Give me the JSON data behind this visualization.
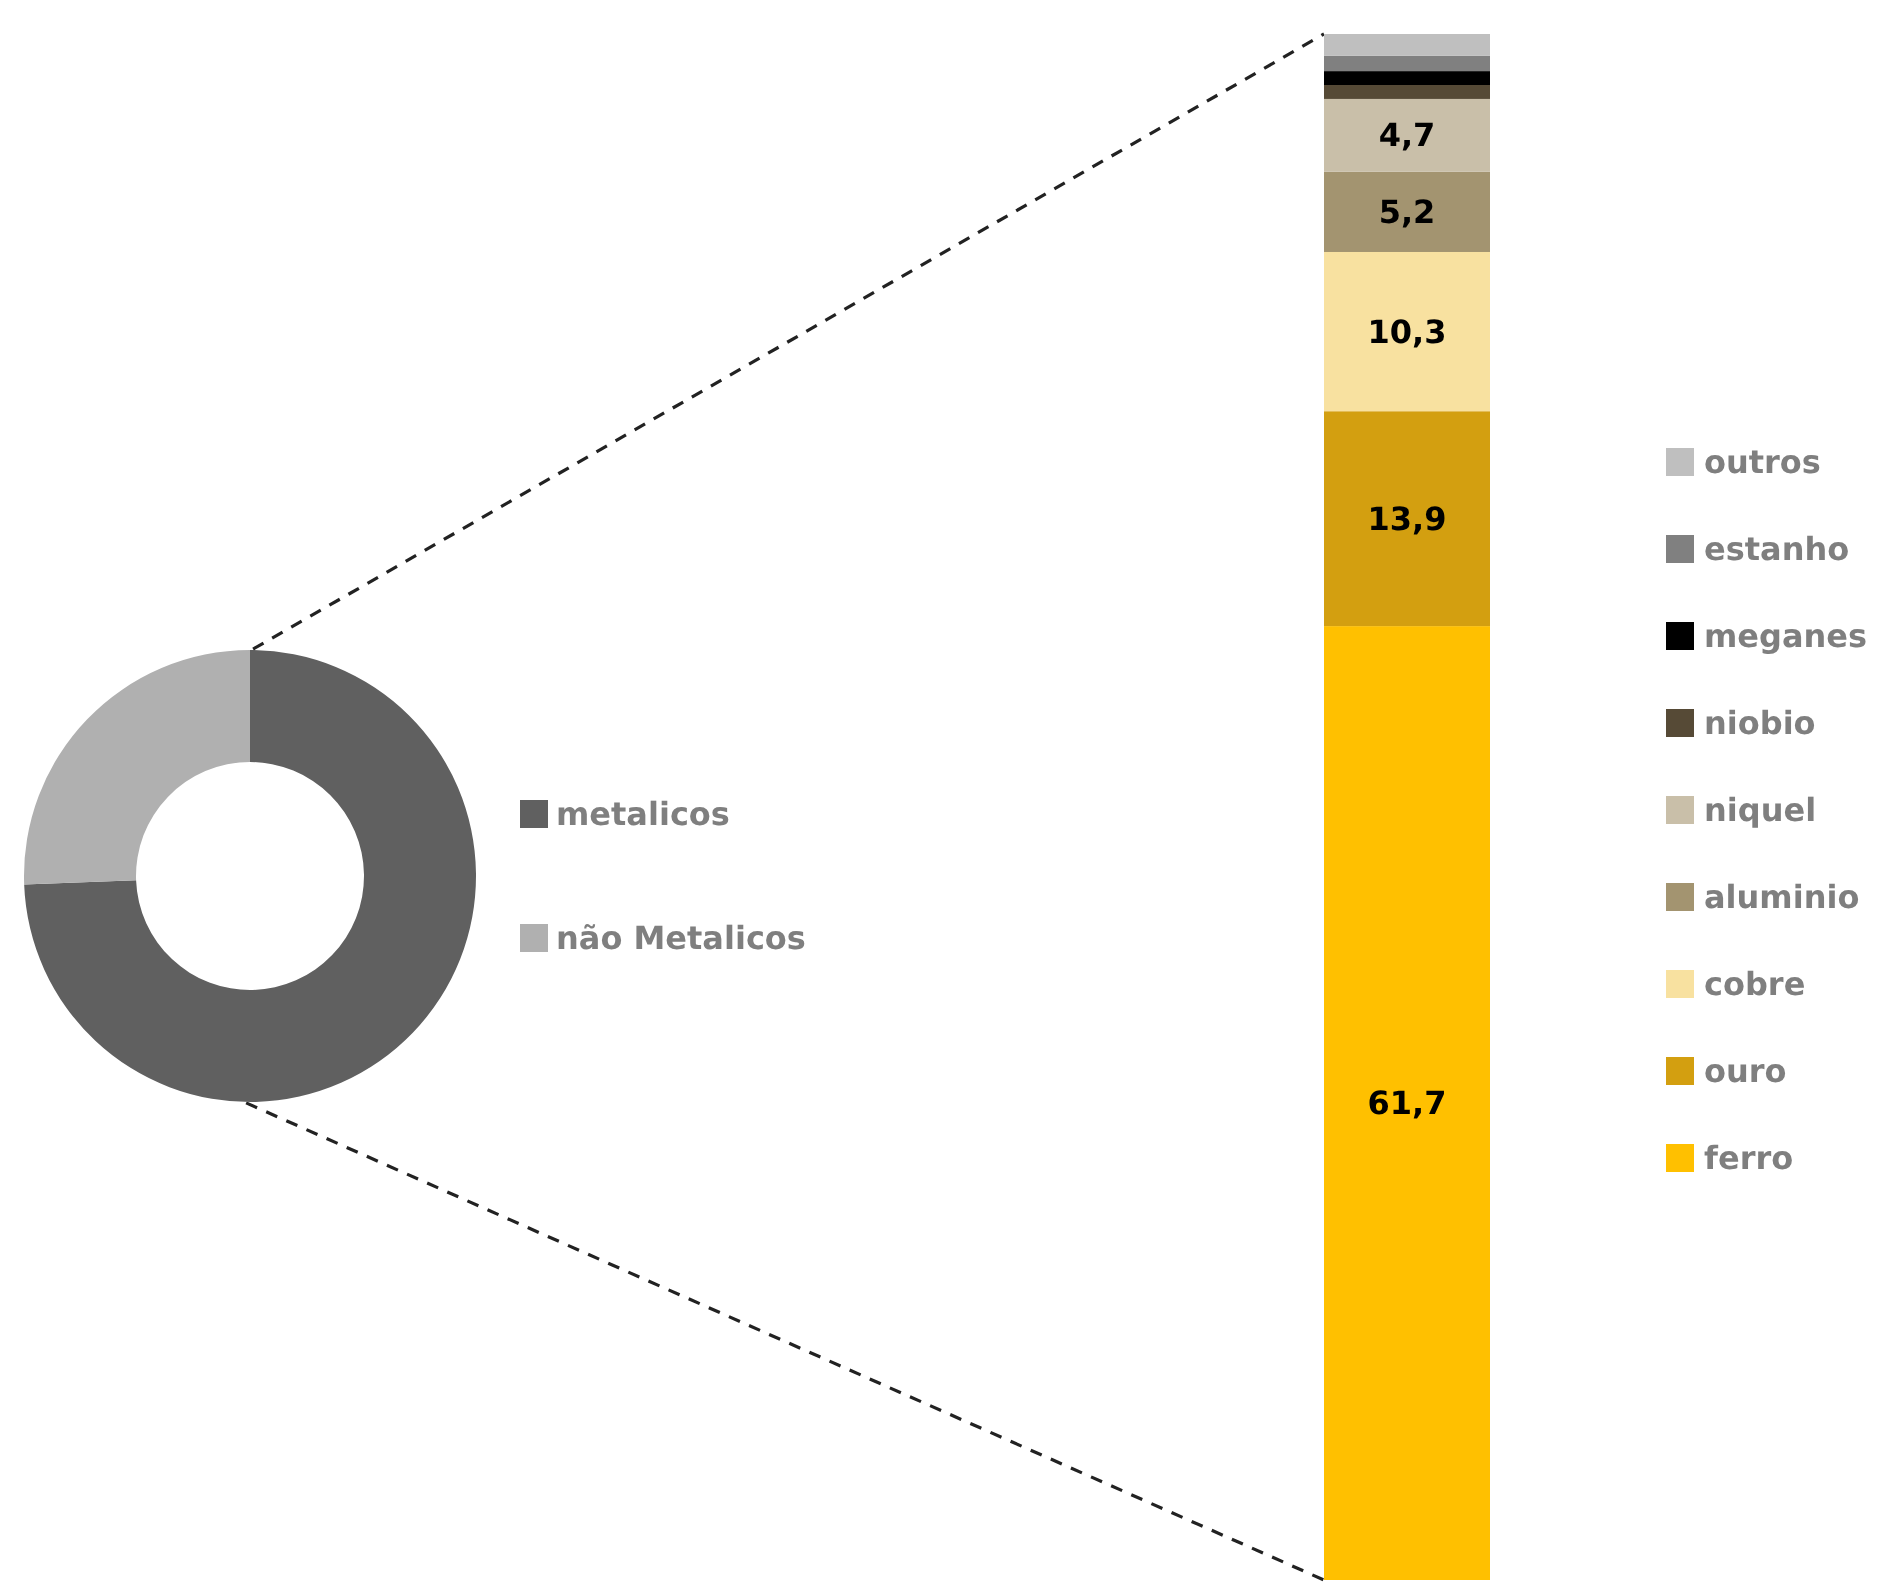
{
  "chart_data": [
    {
      "type": "donut",
      "categories": [
        "metalicos",
        "não Metalicos"
      ],
      "values": [
        74.4,
        25.6
      ],
      "colors": [
        "#606060",
        "#b0b0b0"
      ],
      "legend": "right"
    },
    {
      "type": "bar",
      "stacked": true,
      "categories": [
        null
      ],
      "ylim": [
        0,
        100
      ],
      "legend": "right",
      "series": [
        {
          "name": "ferro",
          "color": "#ffc000",
          "values": [
            61.7
          ],
          "value_labels": [
            "61,7"
          ]
        },
        {
          "name": "ouro",
          "color": "#d39f10",
          "values": [
            13.9
          ],
          "value_labels": [
            "13,9"
          ]
        },
        {
          "name": "cobre",
          "color": "#f8e1a0",
          "values": [
            10.3
          ],
          "value_labels": [
            "10,3"
          ]
        },
        {
          "name": "aluminio",
          "color": "#a39470",
          "values": [
            5.2
          ],
          "value_labels": [
            "5,2"
          ]
        },
        {
          "name": "niquel",
          "color": "#c9bfa9",
          "values": [
            4.7
          ],
          "value_labels": [
            "4,7"
          ]
        },
        {
          "name": "niobio",
          "color": "#564a36",
          "values": [
            0.9
          ],
          "value_labels": [
            null
          ]
        },
        {
          "name": "meganes",
          "color": "#000000",
          "values": [
            0.9
          ],
          "value_labels": [
            null
          ]
        },
        {
          "name": "estanho",
          "color": "#808080",
          "values": [
            1.0
          ],
          "value_labels": [
            null
          ]
        },
        {
          "name": "outros",
          "color": "#bfbfbf",
          "values": [
            1.4
          ],
          "value_labels": [
            null
          ]
        }
      ]
    }
  ]
}
